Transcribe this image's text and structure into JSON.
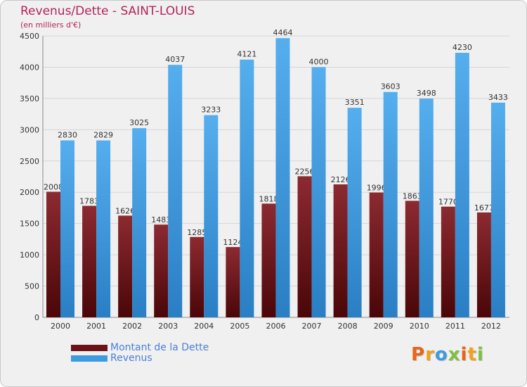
{
  "title": "Revenus/Dette - SAINT-LOUIS",
  "subtitle": "(en milliers d'€)",
  "legend": {
    "debt_label": "Montant de la Dette",
    "revenue_label": "Revenus"
  },
  "logo": {
    "text": "Proxiti"
  },
  "colors": {
    "debt": "#7a1b22",
    "revenue": "#3d9be0",
    "title": "#b3245a",
    "legend_text": "#4a7fd8"
  },
  "chart_data": {
    "type": "bar",
    "categories": [
      "2000",
      "2001",
      "2002",
      "2003",
      "2004",
      "2005",
      "2006",
      "2007",
      "2008",
      "2009",
      "2010",
      "2011",
      "2012"
    ],
    "series": [
      {
        "name": "Montant de la Dette",
        "values": [
          2008,
          1783,
          1626,
          1483,
          1285,
          1124,
          1818,
          2256,
          2126,
          1996,
          1863,
          1770,
          1677
        ]
      },
      {
        "name": "Revenus",
        "values": [
          2830,
          2829,
          3025,
          4037,
          3233,
          4121,
          4464,
          4000,
          3351,
          3603,
          3498,
          4230,
          3433
        ]
      }
    ],
    "ylim": [
      0,
      4500
    ],
    "yticks": [
      0,
      500,
      1000,
      1500,
      2000,
      2500,
      3000,
      3500,
      4000,
      4500
    ],
    "grid": true,
    "legend_position": "bottom-left"
  }
}
